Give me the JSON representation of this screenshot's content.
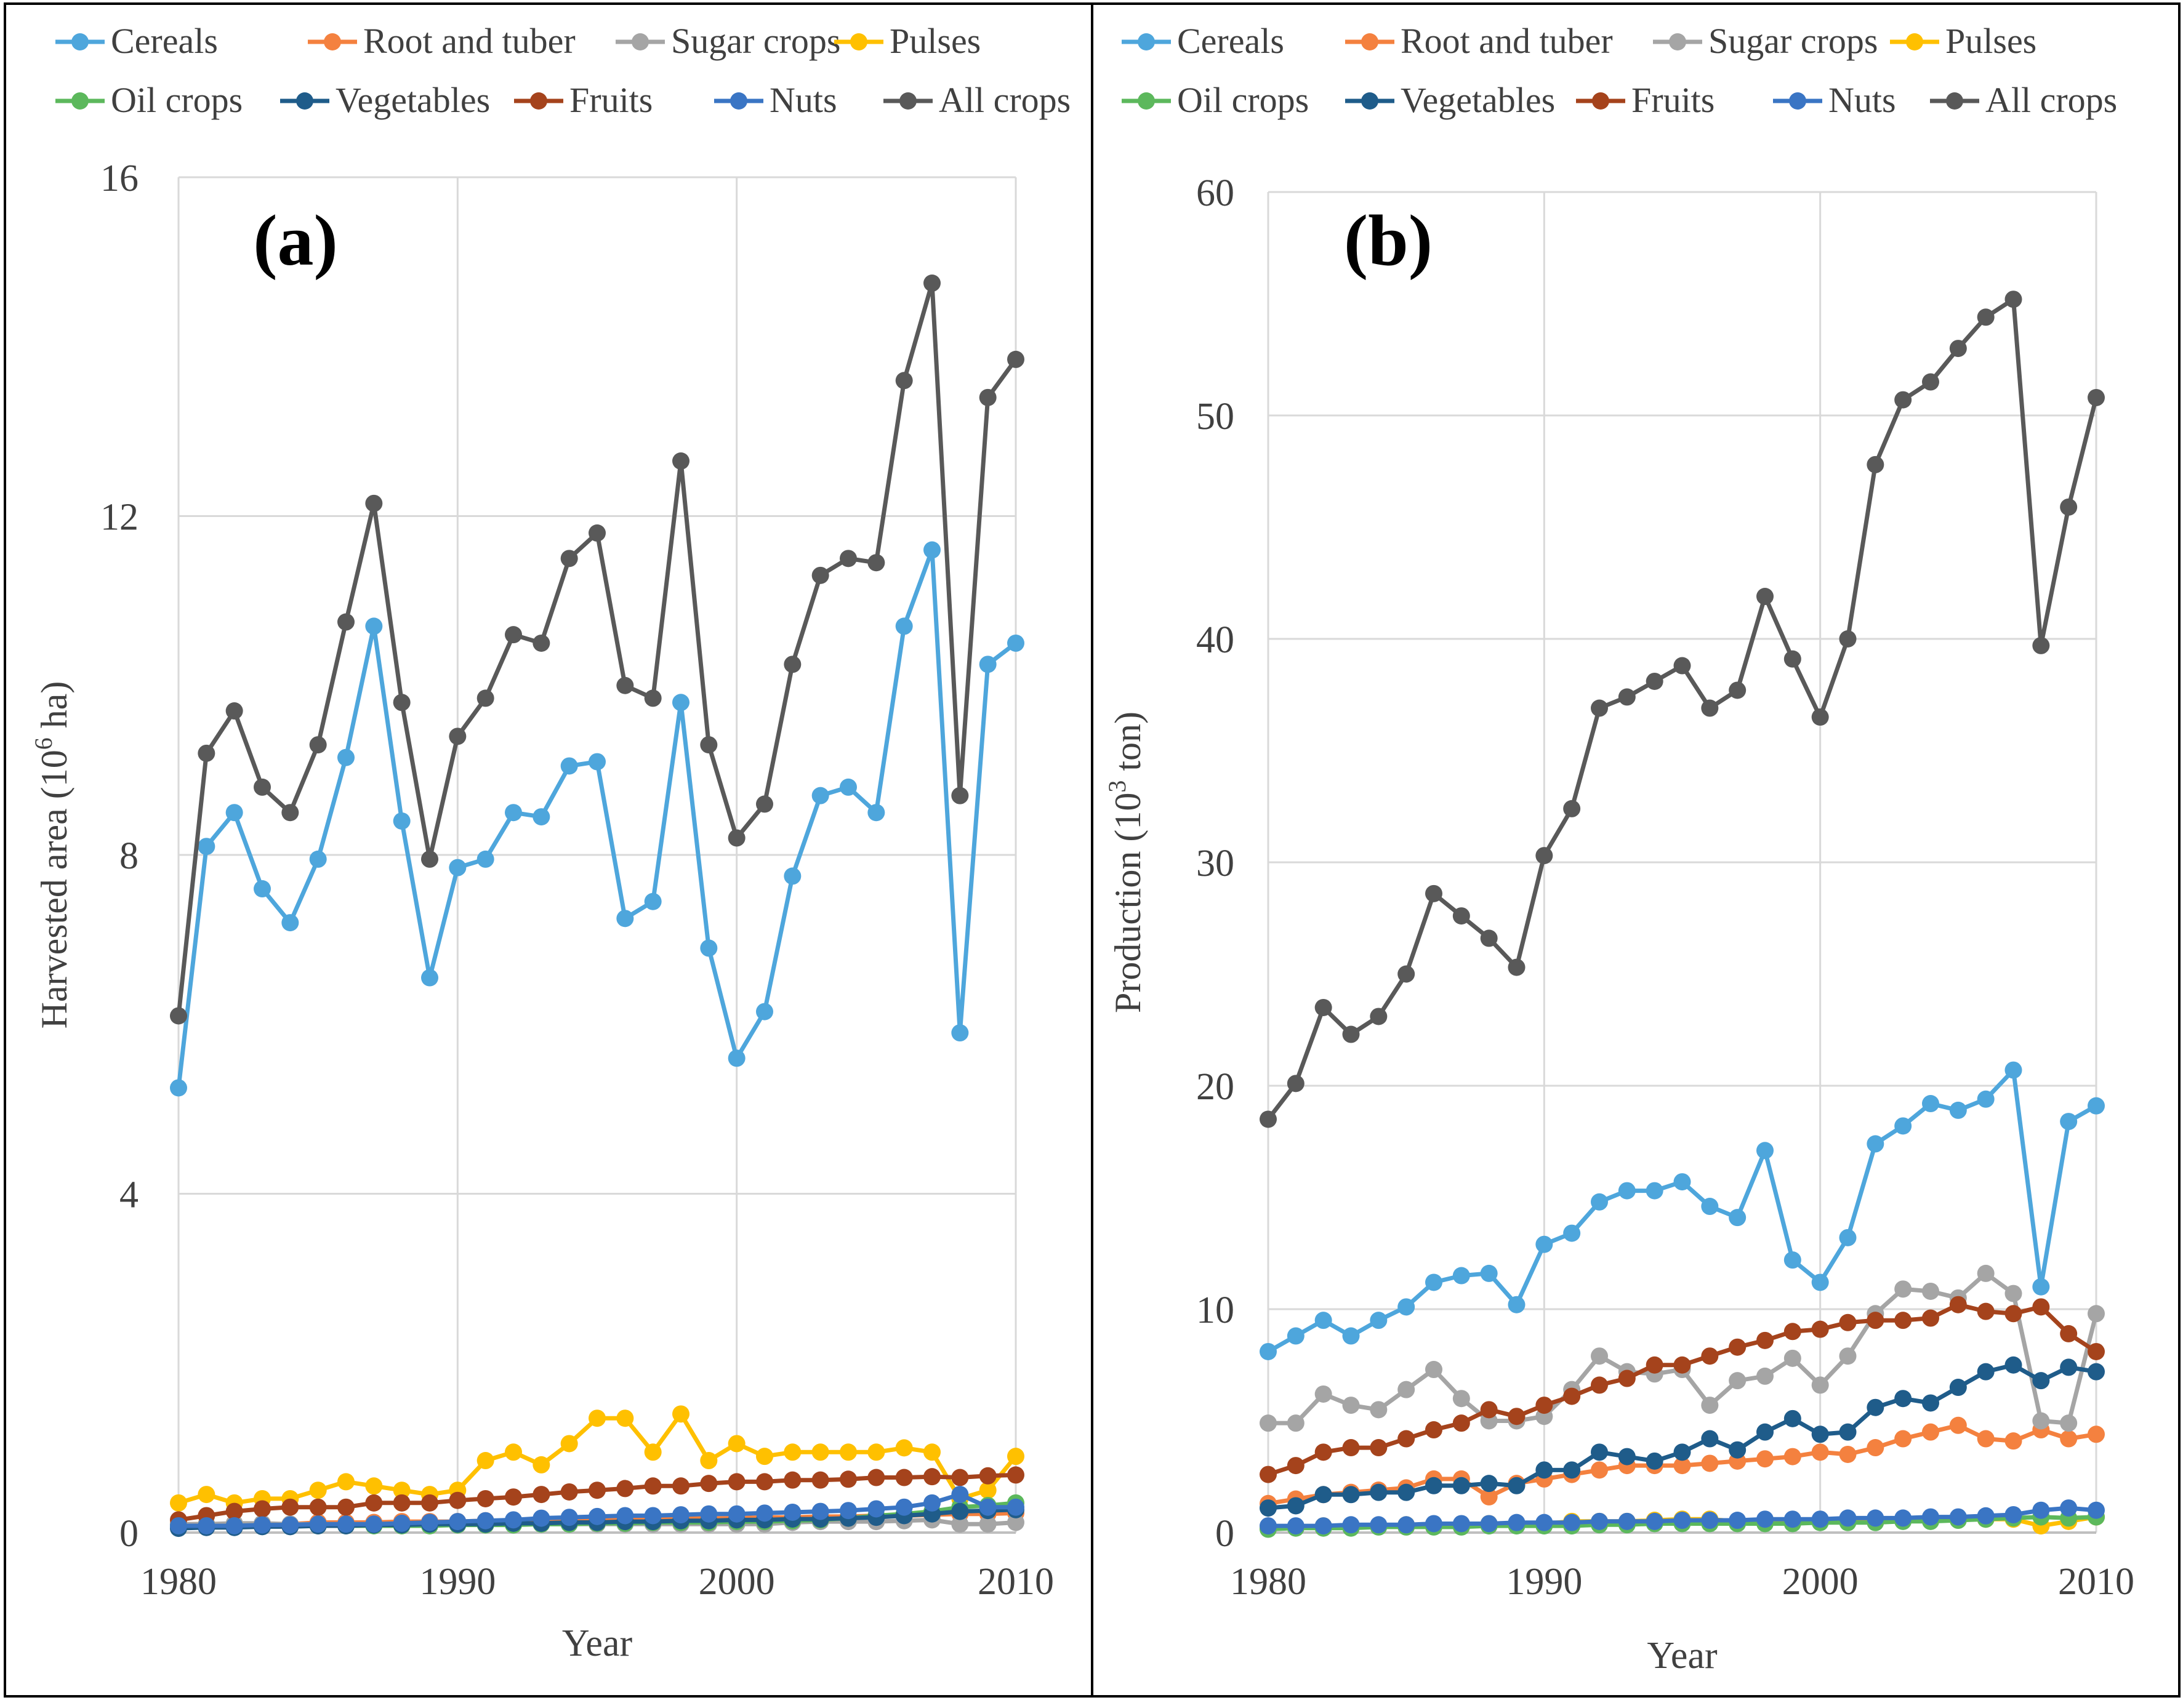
{
  "chart_data": [
    {
      "type": "line",
      "panel_label": "(a)",
      "xlabel": "Year",
      "ylabel": "Harvested area (10^6 ha)",
      "ylabel_main": "Harvested area (10",
      "ylabel_sup": "6",
      "ylabel_tail": " ha)",
      "xlim": [
        1980,
        2010
      ],
      "ylim": [
        0,
        16
      ],
      "x_ticks": [
        "1980",
        "1990",
        "2000",
        "2010"
      ],
      "y_ticks": [
        "0",
        "4",
        "8",
        "12",
        "16"
      ],
      "x": [
        1980,
        1981,
        1982,
        1983,
        1984,
        1985,
        1986,
        1987,
        1988,
        1989,
        1990,
        1991,
        1992,
        1993,
        1994,
        1995,
        1996,
        1997,
        1998,
        1999,
        2000,
        2001,
        2002,
        2003,
        2004,
        2005,
        2006,
        2007,
        2008,
        2009,
        2010
      ],
      "series": [
        {
          "name": "Cereals",
          "color": "#4ea6dc",
          "values": [
            5.25,
            8.1,
            8.5,
            7.6,
            7.2,
            7.95,
            9.15,
            10.7,
            8.4,
            6.55,
            7.85,
            7.95,
            8.5,
            8.45,
            9.05,
            9.1,
            7.25,
            7.45,
            9.8,
            6.9,
            5.6,
            6.15,
            7.75,
            8.7,
            8.8,
            8.5,
            10.7,
            11.6,
            5.9,
            10.25,
            10.5
          ]
        },
        {
          "name": "Root and tuber",
          "color": "#f4813f",
          "values": [
            0.1,
            0.1,
            0.1,
            0.1,
            0.1,
            0.12,
            0.12,
            0.12,
            0.13,
            0.13,
            0.13,
            0.14,
            0.14,
            0.15,
            0.15,
            0.15,
            0.16,
            0.16,
            0.17,
            0.17,
            0.17,
            0.18,
            0.18,
            0.19,
            0.19,
            0.2,
            0.2,
            0.21,
            0.22,
            0.22,
            0.23
          ]
        },
        {
          "name": "Sugar crops",
          "color": "#a5a5a5",
          "values": [
            0.1,
            0.1,
            0.11,
            0.11,
            0.1,
            0.1,
            0.1,
            0.1,
            0.1,
            0.1,
            0.1,
            0.1,
            0.11,
            0.1,
            0.1,
            0.1,
            0.1,
            0.1,
            0.1,
            0.1,
            0.1,
            0.1,
            0.12,
            0.13,
            0.13,
            0.13,
            0.14,
            0.15,
            0.1,
            0.1,
            0.12
          ]
        },
        {
          "name": "Pulses",
          "color": "#ffc000",
          "values": [
            0.35,
            0.45,
            0.35,
            0.4,
            0.4,
            0.5,
            0.6,
            0.55,
            0.5,
            0.45,
            0.5,
            0.85,
            0.95,
            0.8,
            1.05,
            1.35,
            1.35,
            0.95,
            1.4,
            0.85,
            1.05,
            0.9,
            0.95,
            0.95,
            0.95,
            0.95,
            1.0,
            0.95,
            0.4,
            0.5,
            0.9
          ]
        },
        {
          "name": "Oil crops",
          "color": "#5cb85c",
          "values": [
            0.08,
            0.08,
            0.08,
            0.08,
            0.08,
            0.08,
            0.08,
            0.08,
            0.08,
            0.08,
            0.09,
            0.09,
            0.09,
            0.1,
            0.1,
            0.11,
            0.11,
            0.12,
            0.12,
            0.12,
            0.13,
            0.13,
            0.14,
            0.15,
            0.17,
            0.2,
            0.22,
            0.25,
            0.3,
            0.32,
            0.35
          ]
        },
        {
          "name": "Vegetables",
          "color": "#1f5c8a",
          "values": [
            0.05,
            0.06,
            0.06,
            0.07,
            0.07,
            0.08,
            0.08,
            0.09,
            0.09,
            0.1,
            0.1,
            0.1,
            0.11,
            0.11,
            0.12,
            0.12,
            0.13,
            0.13,
            0.14,
            0.14,
            0.15,
            0.15,
            0.16,
            0.16,
            0.17,
            0.18,
            0.2,
            0.22,
            0.25,
            0.26,
            0.27
          ]
        },
        {
          "name": "Fruits",
          "color": "#a5431c",
          "values": [
            0.15,
            0.2,
            0.25,
            0.28,
            0.3,
            0.3,
            0.3,
            0.35,
            0.35,
            0.35,
            0.38,
            0.4,
            0.42,
            0.45,
            0.48,
            0.5,
            0.52,
            0.55,
            0.55,
            0.58,
            0.6,
            0.6,
            0.62,
            0.62,
            0.63,
            0.65,
            0.65,
            0.66,
            0.65,
            0.67,
            0.68
          ]
        },
        {
          "name": "Nuts",
          "color": "#3a75c4",
          "values": [
            0.08,
            0.08,
            0.08,
            0.09,
            0.09,
            0.1,
            0.1,
            0.1,
            0.11,
            0.12,
            0.13,
            0.14,
            0.15,
            0.17,
            0.18,
            0.19,
            0.2,
            0.2,
            0.21,
            0.22,
            0.22,
            0.23,
            0.24,
            0.25,
            0.26,
            0.28,
            0.3,
            0.35,
            0.45,
            0.3,
            0.3
          ]
        },
        {
          "name": "All crops",
          "color": "#595959",
          "values": [
            6.1,
            9.2,
            9.7,
            8.8,
            8.5,
            9.3,
            10.75,
            12.15,
            9.8,
            7.95,
            9.4,
            9.85,
            10.6,
            10.5,
            11.5,
            11.8,
            10.0,
            9.85,
            12.65,
            9.3,
            8.2,
            8.6,
            10.25,
            11.3,
            11.5,
            11.45,
            13.6,
            14.75,
            8.7,
            13.4,
            13.85
          ]
        }
      ]
    },
    {
      "type": "line",
      "panel_label": "(b)",
      "xlabel": "Year",
      "ylabel": "Production (10^3 ton)",
      "ylabel_main": "Production  (10",
      "ylabel_sup": "3",
      "ylabel_tail": " ton)",
      "xlim": [
        1980,
        2010
      ],
      "ylim": [
        0,
        60
      ],
      "x_ticks": [
        "1980",
        "1990",
        "2000",
        "2010"
      ],
      "y_ticks": [
        "0",
        "10",
        "20",
        "30",
        "40",
        "50",
        "60"
      ],
      "x": [
        1980,
        1981,
        1982,
        1983,
        1984,
        1985,
        1986,
        1987,
        1988,
        1989,
        1990,
        1991,
        1992,
        1993,
        1994,
        1995,
        1996,
        1997,
        1998,
        1999,
        2000,
        2001,
        2002,
        2003,
        2004,
        2005,
        2006,
        2007,
        2008,
        2009,
        2010
      ],
      "series": [
        {
          "name": "Cereals",
          "color": "#4ea6dc",
          "values": [
            8.1,
            8.8,
            9.5,
            8.8,
            9.5,
            10.1,
            11.2,
            11.5,
            11.6,
            10.2,
            12.9,
            13.4,
            14.8,
            15.3,
            15.3,
            15.7,
            14.6,
            14.1,
            17.1,
            12.2,
            11.2,
            13.2,
            17.4,
            18.2,
            19.2,
            18.9,
            19.4,
            20.7,
            11.0,
            18.4,
            19.1
          ]
        },
        {
          "name": "Root and tuber",
          "color": "#f4813f",
          "values": [
            1.3,
            1.5,
            1.7,
            1.8,
            1.9,
            2.0,
            2.4,
            2.4,
            1.6,
            2.2,
            2.4,
            2.6,
            2.8,
            3.0,
            3.0,
            3.0,
            3.1,
            3.2,
            3.3,
            3.4,
            3.6,
            3.5,
            3.8,
            4.2,
            4.5,
            4.8,
            4.2,
            4.1,
            4.6,
            4.2,
            4.4
          ]
        },
        {
          "name": "Sugar crops",
          "color": "#a5a5a5",
          "values": [
            4.9,
            4.9,
            6.2,
            5.7,
            5.5,
            6.4,
            7.3,
            6.0,
            5.0,
            5.0,
            5.2,
            6.4,
            7.9,
            7.2,
            7.1,
            7.3,
            5.7,
            6.8,
            7.0,
            7.8,
            6.6,
            7.9,
            9.8,
            10.9,
            10.8,
            10.5,
            11.6,
            10.7,
            5.0,
            4.9,
            9.8
          ]
        },
        {
          "name": "Pulses",
          "color": "#ffc000",
          "values": [
            0.2,
            0.25,
            0.3,
            0.3,
            0.3,
            0.35,
            0.35,
            0.35,
            0.4,
            0.4,
            0.4,
            0.5,
            0.5,
            0.5,
            0.55,
            0.6,
            0.6,
            0.5,
            0.55,
            0.5,
            0.55,
            0.5,
            0.55,
            0.55,
            0.55,
            0.6,
            0.6,
            0.6,
            0.3,
            0.5,
            0.7
          ]
        },
        {
          "name": "Oil crops",
          "color": "#5cb85c",
          "values": [
            0.15,
            0.2,
            0.2,
            0.2,
            0.25,
            0.25,
            0.25,
            0.25,
            0.3,
            0.3,
            0.3,
            0.3,
            0.35,
            0.35,
            0.4,
            0.4,
            0.4,
            0.4,
            0.4,
            0.4,
            0.45,
            0.45,
            0.45,
            0.5,
            0.5,
            0.55,
            0.6,
            0.65,
            0.7,
            0.65,
            0.7
          ]
        },
        {
          "name": "Vegetables",
          "color": "#1f5c8a",
          "values": [
            1.1,
            1.2,
            1.7,
            1.7,
            1.8,
            1.8,
            2.1,
            2.1,
            2.2,
            2.1,
            2.8,
            2.8,
            3.6,
            3.4,
            3.2,
            3.6,
            4.2,
            3.7,
            4.5,
            5.1,
            4.4,
            4.5,
            5.6,
            6.0,
            5.8,
            6.5,
            7.2,
            7.5,
            6.8,
            7.4,
            7.2
          ]
        },
        {
          "name": "Fruits",
          "color": "#a5431c",
          "values": [
            2.6,
            3.0,
            3.6,
            3.8,
            3.8,
            4.2,
            4.6,
            4.9,
            5.5,
            5.2,
            5.7,
            6.1,
            6.6,
            6.9,
            7.5,
            7.5,
            7.9,
            8.3,
            8.6,
            9.0,
            9.1,
            9.4,
            9.5,
            9.5,
            9.6,
            10.2,
            9.9,
            9.8,
            10.1,
            8.9,
            8.1
          ]
        },
        {
          "name": "Nuts",
          "color": "#3a75c4",
          "values": [
            0.3,
            0.3,
            0.3,
            0.35,
            0.35,
            0.35,
            0.4,
            0.4,
            0.4,
            0.45,
            0.45,
            0.45,
            0.5,
            0.5,
            0.5,
            0.55,
            0.55,
            0.55,
            0.6,
            0.6,
            0.6,
            0.65,
            0.65,
            0.65,
            0.7,
            0.7,
            0.75,
            0.8,
            1.0,
            1.1,
            1.0
          ]
        },
        {
          "name": "All crops",
          "color": "#595959",
          "values": [
            18.5,
            20.1,
            23.5,
            22.3,
            23.1,
            25.0,
            28.6,
            27.6,
            26.6,
            25.3,
            30.3,
            32.4,
            36.9,
            37.4,
            38.1,
            38.8,
            36.9,
            37.7,
            41.9,
            39.1,
            36.5,
            40.0,
            47.8,
            50.7,
            51.5,
            53.0,
            54.4,
            55.2,
            39.7,
            45.9,
            50.8
          ]
        }
      ]
    }
  ]
}
